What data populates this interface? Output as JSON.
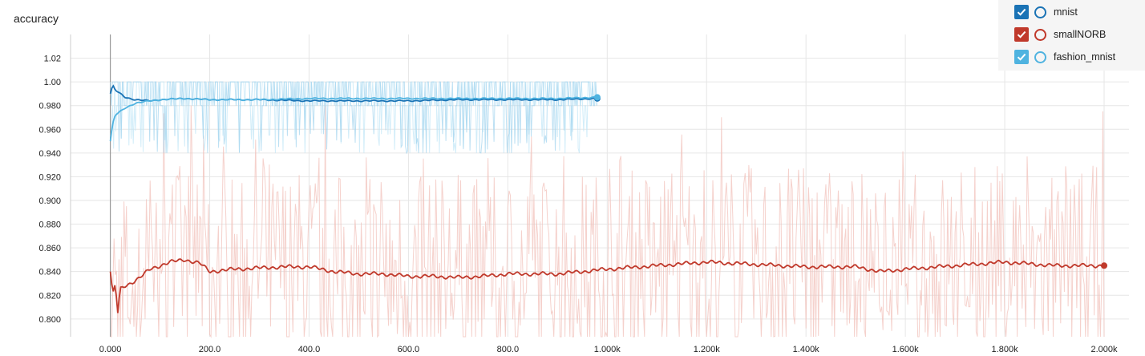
{
  "chart_data": {
    "type": "line",
    "title": "accuracy",
    "xlabel": "",
    "ylabel": "",
    "xlim": [
      -80,
      2050
    ],
    "ylim": [
      0.785,
      1.04
    ],
    "x_ticks": [
      0,
      200,
      400,
      600,
      800,
      1000,
      1200,
      1400,
      1600,
      1800,
      2000
    ],
    "x_tick_labels": [
      "0.000",
      "200.0",
      "400.0",
      "600.0",
      "800.0",
      "1.000k",
      "1.200k",
      "1.400k",
      "1.600k",
      "1.800k",
      "2.000k"
    ],
    "y_ticks": [
      0.8,
      0.82,
      0.84,
      0.86,
      0.88,
      0.9,
      0.92,
      0.94,
      0.96,
      0.98,
      1.0,
      1.02
    ],
    "y_tick_labels": [
      "0.800",
      "0.820",
      "0.840",
      "0.860",
      "0.880",
      "0.900",
      "0.920",
      "0.940",
      "0.960",
      "0.980",
      "1.00",
      "1.02"
    ],
    "grid": true,
    "legend_position": "top-right",
    "series": [
      {
        "name": "mnist",
        "color": "#1a73b5",
        "checked": true,
        "x": [
          0,
          5,
          10,
          20,
          30,
          50,
          80,
          100,
          150,
          200,
          300,
          400,
          500,
          600,
          700,
          800,
          900,
          980
        ],
        "smoothed": [
          0.99,
          0.997,
          0.993,
          0.99,
          0.987,
          0.985,
          0.984,
          0.985,
          0.986,
          0.985,
          0.985,
          0.984,
          0.984,
          0.984,
          0.985,
          0.985,
          0.985,
          0.986
        ],
        "raw_band": [
          0.94,
          1.0
        ]
      },
      {
        "name": "smallNORB",
        "color": "#c0392b",
        "checked": true,
        "x": [
          0,
          5,
          10,
          15,
          20,
          30,
          40,
          60,
          80,
          100,
          120,
          150,
          180,
          200,
          250,
          300,
          350,
          400,
          450,
          500,
          550,
          600,
          650,
          700,
          750,
          800,
          850,
          900,
          950,
          1000,
          1100,
          1200,
          1300,
          1400,
          1500,
          1550,
          1600,
          1700,
          1800,
          1900,
          2000
        ],
        "smoothed": [
          0.84,
          0.82,
          0.83,
          0.805,
          0.825,
          0.828,
          0.83,
          0.835,
          0.842,
          0.845,
          0.848,
          0.85,
          0.847,
          0.84,
          0.842,
          0.843,
          0.844,
          0.844,
          0.84,
          0.838,
          0.838,
          0.836,
          0.836,
          0.835,
          0.836,
          0.838,
          0.838,
          0.838,
          0.84,
          0.842,
          0.845,
          0.848,
          0.846,
          0.844,
          0.844,
          0.84,
          0.842,
          0.845,
          0.848,
          0.845,
          0.845
        ],
        "raw_band": [
          0.785,
          0.98
        ]
      },
      {
        "name": "fashion_mnist",
        "color": "#4fb3e0",
        "checked": true,
        "x": [
          0,
          5,
          10,
          20,
          30,
          50,
          80,
          100,
          150,
          200,
          300,
          400,
          500,
          600,
          700,
          800,
          900,
          980
        ],
        "smoothed": [
          0.95,
          0.965,
          0.972,
          0.975,
          0.978,
          0.982,
          0.984,
          0.985,
          0.986,
          0.985,
          0.985,
          0.986,
          0.986,
          0.986,
          0.986,
          0.986,
          0.986,
          0.987
        ],
        "raw_band": [
          0.93,
          1.0
        ]
      }
    ]
  }
}
